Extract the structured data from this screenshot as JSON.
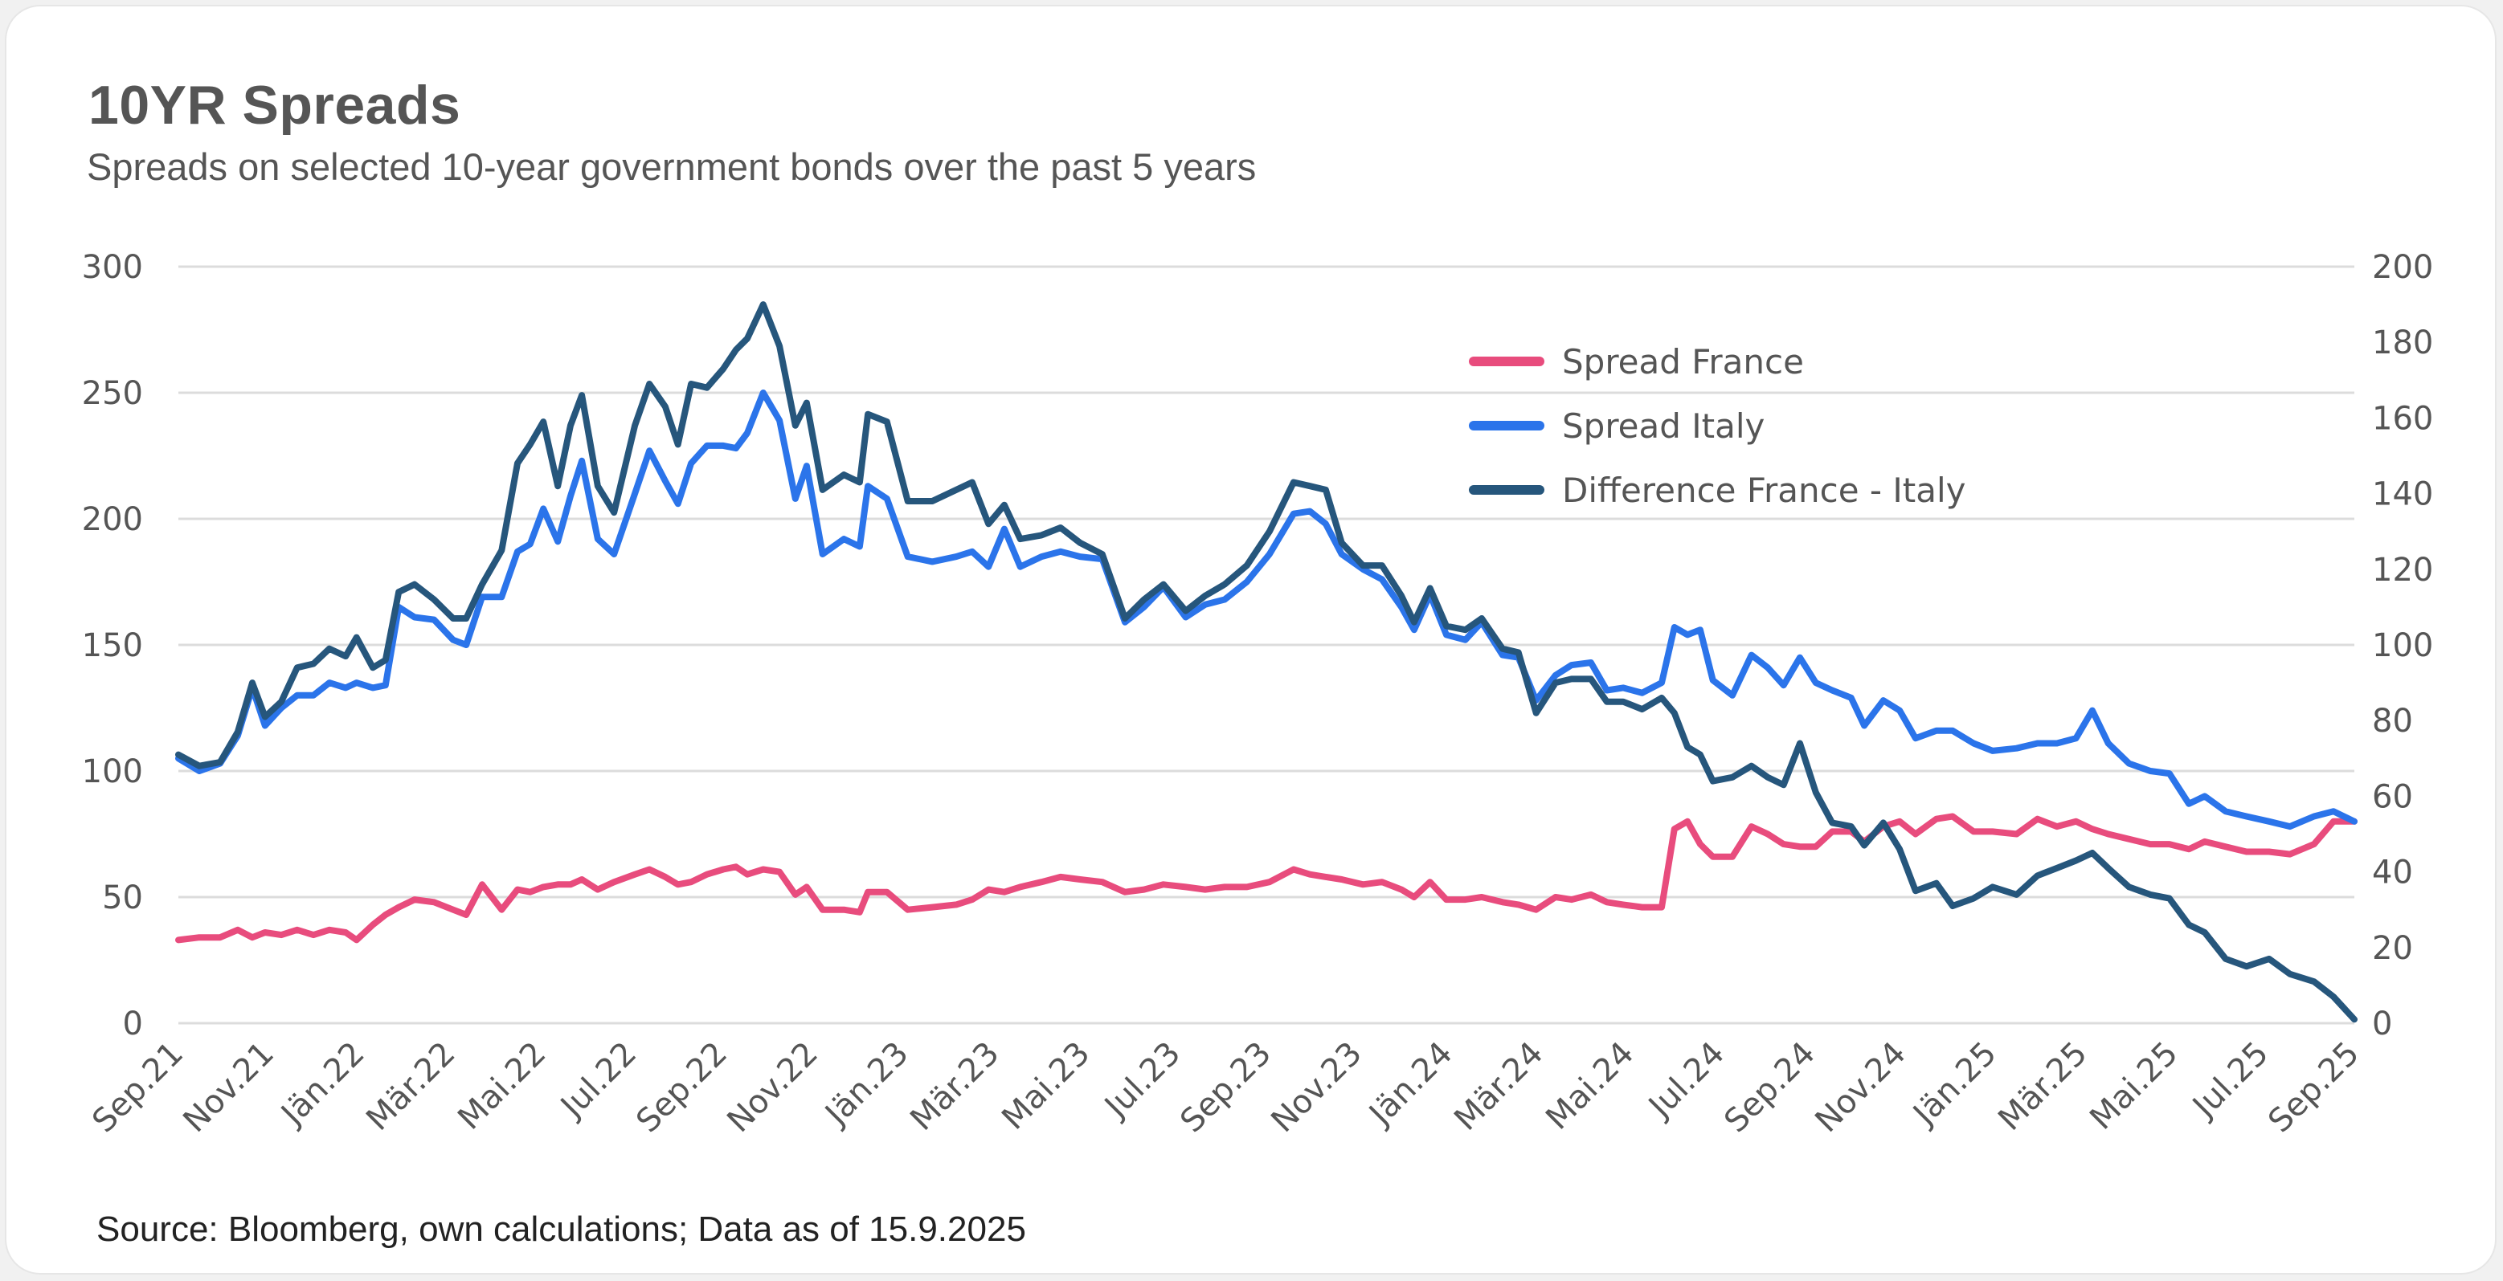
{
  "header": {
    "title": "10YR Spreads",
    "subtitle": "Spreads on selected 10-year government bonds over the past 5 years"
  },
  "footer": {
    "source": "Source: Bloomberg, own calculations; Data as of 15.9.2025"
  },
  "chart_data": {
    "type": "line",
    "title": "10YR Spreads",
    "subtitle": "Spreads on selected 10-year government bonds over the past 5 years",
    "xlabel": "",
    "ylabel_left": "",
    "ylabel_right": "",
    "x_unit": "months since Sep 2021",
    "x_range": [
      0,
      48
    ],
    "x_ticks": [
      {
        "x": 0,
        "label": "Sep.21"
      },
      {
        "x": 2,
        "label": "Nov.21"
      },
      {
        "x": 4,
        "label": "Jän.22"
      },
      {
        "x": 6,
        "label": "Mär.22"
      },
      {
        "x": 8,
        "label": "Mai.22"
      },
      {
        "x": 10,
        "label": "Jul.22"
      },
      {
        "x": 12,
        "label": "Sep.22"
      },
      {
        "x": 14,
        "label": "Nov.22"
      },
      {
        "x": 16,
        "label": "Jän.23"
      },
      {
        "x": 18,
        "label": "Mär.23"
      },
      {
        "x": 20,
        "label": "Mai.23"
      },
      {
        "x": 22,
        "label": "Jul.23"
      },
      {
        "x": 24,
        "label": "Sep.23"
      },
      {
        "x": 26,
        "label": "Nov.23"
      },
      {
        "x": 28,
        "label": "Jän.24"
      },
      {
        "x": 30,
        "label": "Mär.24"
      },
      {
        "x": 32,
        "label": "Mai.24"
      },
      {
        "x": 34,
        "label": "Jul.24"
      },
      {
        "x": 36,
        "label": "Sep.24"
      },
      {
        "x": 38,
        "label": "Nov.24"
      },
      {
        "x": 40,
        "label": "Jän.25"
      },
      {
        "x": 42,
        "label": "Mär.25"
      },
      {
        "x": 44,
        "label": "Mai.25"
      },
      {
        "x": 46,
        "label": "Jul.25"
      },
      {
        "x": 48,
        "label": "Sep.25"
      }
    ],
    "y_left": {
      "range": [
        0,
        300
      ],
      "ticks": [
        0,
        50,
        100,
        150,
        200,
        250,
        300
      ]
    },
    "y_right": {
      "range": [
        0,
        200
      ],
      "ticks": [
        0,
        20,
        40,
        60,
        80,
        100,
        120,
        140,
        160,
        180,
        200
      ]
    },
    "grid": true,
    "legend_position": "top-right",
    "x": [
      0,
      0.46,
      0.92,
      1.31,
      1.63,
      1.91,
      2.27,
      2.62,
      2.98,
      3.33,
      3.69,
      3.93,
      4.29,
      4.57,
      4.86,
      5.21,
      5.64,
      6.06,
      6.35,
      6.7,
      7.13,
      7.48,
      7.76,
      8.05,
      8.37,
      8.65,
      8.9,
      9.25,
      9.61,
      10.07,
      10.39,
      10.74,
      11.02,
      11.31,
      11.66,
      12.02,
      12.3,
      12.55,
      12.9,
      13.26,
      13.61,
      13.86,
      14.21,
      14.68,
      15.03,
      15.21,
      15.63,
      16.09,
      16.63,
      17.16,
      17.51,
      17.87,
      18.22,
      18.57,
      19.04,
      19.46,
      19.89,
      20.38,
      20.88,
      21.3,
      21.73,
      22.22,
      22.65,
      23.08,
      23.57,
      24.07,
      24.6,
      24.96,
      25.31,
      25.66,
      26.13,
      26.55,
      26.98,
      27.26,
      27.61,
      27.97,
      28.39,
      28.75,
      29.21,
      29.56,
      29.95,
      30.38,
      30.73,
      31.16,
      31.51,
      31.87,
      32.29,
      32.72,
      33.0,
      33.29,
      33.57,
      33.85,
      34.28,
      34.7,
      35.06,
      35.41,
      35.77,
      36.12,
      36.48,
      36.9,
      37.19,
      37.61,
      37.97,
      38.32,
      38.78,
      39.14,
      39.6,
      40.02,
      40.55,
      41.01,
      41.44,
      41.86,
      42.22,
      42.57,
      43.03,
      43.5,
      43.92,
      44.35,
      44.7,
      45.16,
      45.62,
      46.12,
      46.58,
      47.11,
      47.54,
      48
    ],
    "series": [
      {
        "name": "Spread France",
        "axis": "left",
        "color": "#e84c7d",
        "values": [
          33,
          34,
          34,
          37,
          34,
          36,
          35,
          37,
          35,
          37,
          36,
          33,
          39,
          43,
          46,
          49,
          48,
          45,
          43,
          55,
          45,
          53,
          52,
          54,
          55,
          55,
          57,
          53,
          56,
          59,
          61,
          58,
          55,
          56,
          59,
          61,
          62,
          59,
          61,
          60,
          51,
          54,
          45,
          45,
          44,
          52,
          52,
          45,
          46,
          47,
          49,
          53,
          52,
          54,
          56,
          58,
          57,
          56,
          52,
          53,
          55,
          54,
          53,
          54,
          54,
          56,
          61,
          59,
          58,
          57,
          55,
          56,
          53,
          50,
          56,
          49,
          49,
          50,
          48,
          47,
          45,
          50,
          49,
          51,
          48,
          47,
          46,
          46,
          77,
          80,
          71,
          66,
          66,
          78,
          75,
          71,
          70,
          70,
          76,
          76,
          72,
          78,
          80,
          75,
          81,
          82,
          76,
          76,
          75,
          81,
          78,
          80,
          77,
          75,
          73,
          71,
          71,
          69,
          72,
          70,
          68,
          68,
          67,
          71,
          80,
          80
        ]
      },
      {
        "name": "Spread Italy",
        "axis": "left",
        "color": "#2b74ea",
        "values": [
          105,
          100,
          103,
          114,
          133,
          118,
          125,
          130,
          130,
          135,
          133,
          135,
          133,
          134,
          165,
          161,
          160,
          152,
          150,
          169,
          169,
          187,
          190,
          204,
          191,
          209,
          223,
          192,
          186,
          210,
          227,
          215,
          206,
          222,
          229,
          229,
          228,
          234,
          250,
          239,
          208,
          221,
          186,
          192,
          189,
          213,
          208,
          185,
          183,
          185,
          187,
          181,
          196,
          181,
          185,
          187,
          185,
          184,
          159,
          165,
          173,
          161,
          166,
          168,
          175,
          186,
          202,
          203,
          198,
          186,
          180,
          176,
          165,
          156,
          170,
          154,
          152,
          159,
          146,
          145,
          128,
          138,
          142,
          143,
          132,
          133,
          131,
          135,
          157,
          154,
          156,
          136,
          130,
          146,
          141,
          134,
          145,
          135,
          132,
          129,
          118,
          128,
          124,
          113,
          116,
          116,
          111,
          108,
          109,
          111,
          111,
          113,
          124,
          111,
          103,
          100,
          99,
          87,
          90,
          84,
          82,
          80,
          78,
          82,
          84,
          80
        ]
      },
      {
        "name": "Difference France - Italy",
        "axis": "right",
        "color": "#26567c",
        "values": [
          71,
          68,
          69,
          77,
          90,
          81,
          85,
          94,
          95,
          99,
          97,
          102,
          94,
          96,
          114,
          116,
          112,
          107,
          107,
          116,
          125,
          148,
          153,
          159,
          142,
          158,
          166,
          142,
          135,
          158,
          169,
          163,
          153,
          169,
          168,
          173,
          178,
          181,
          190,
          179,
          158,
          164,
          141,
          145,
          143,
          161,
          159,
          138,
          138,
          141,
          143,
          132,
          137,
          128,
          129,
          131,
          127,
          124,
          107,
          112,
          116,
          109,
          113,
          116,
          121,
          130,
          143,
          142,
          141,
          127,
          121,
          121,
          113,
          106,
          115,
          105,
          104,
          107,
          99,
          98,
          82,
          90,
          91,
          91,
          85,
          85,
          83,
          86,
          82,
          73,
          71,
          64,
          65,
          68,
          65,
          63,
          74,
          61,
          53,
          52,
          47,
          53,
          46,
          35,
          37,
          31,
          33,
          36,
          34,
          39,
          41,
          43,
          45,
          41,
          36,
          34,
          33,
          26,
          24,
          17,
          15,
          17,
          13,
          11,
          7,
          1
        ]
      }
    ]
  }
}
